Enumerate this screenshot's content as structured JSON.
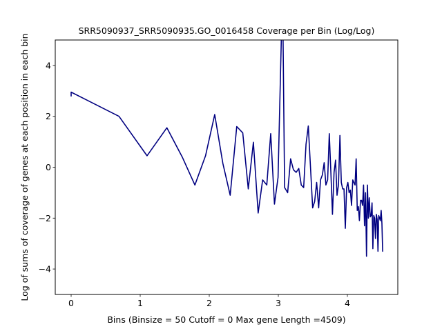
{
  "chart_data": {
    "type": "line",
    "title": "SRR5090937_SRR5090935.GO_0016458 Coverage per Bin (Log/Log)",
    "xlabel": "Bins  (Binsize = 50 Cutoff = 0 Max gene Length =4509)",
    "ylabel": "Log of sums of coverage of genes at each position in each bin",
    "xlim": [
      -0.23,
      4.73
    ],
    "ylim": [
      -5,
      5
    ],
    "xticks": [
      0,
      1,
      2,
      3,
      4
    ],
    "yticks": [
      -4,
      -2,
      0,
      2,
      4
    ],
    "grid": false,
    "line_color": "#000080",
    "series": [
      {
        "x": [
          0,
          0,
          0.693,
          1.099,
          1.386,
          1.609,
          1.792,
          1.946,
          2.079,
          2.197,
          2.303,
          2.398,
          2.485,
          2.565,
          2.639,
          2.708,
          2.773,
          2.833,
          2.89,
          2.944,
          2.996,
          3.045,
          3.068,
          3.091,
          3.135,
          3.178,
          3.219,
          3.258,
          3.296,
          3.332,
          3.367,
          3.401,
          3.434,
          3.466,
          3.497,
          3.526,
          3.555,
          3.584,
          3.611,
          3.638,
          3.664,
          3.689,
          3.714,
          3.738,
          3.761,
          3.784,
          3.807,
          3.829,
          3.85,
          3.871,
          3.892,
          3.912,
          3.932,
          3.951,
          3.97,
          3.989,
          4.007,
          4.025,
          4.043,
          4.06,
          4.078,
          4.094,
          4.111,
          4.127,
          4.143,
          4.159,
          4.174,
          4.19,
          4.205,
          4.22,
          4.234,
          4.248,
          4.263,
          4.277,
          4.29,
          4.304,
          4.317,
          4.331,
          4.344,
          4.357,
          4.369,
          4.382,
          4.394,
          4.407,
          4.419,
          4.431,
          4.443,
          4.454,
          4.466,
          4.477,
          4.489,
          4.5,
          4.511
        ],
        "y": [
          2.8,
          2.95,
          2.0,
          0.45,
          1.55,
          0.4,
          -0.7,
          0.45,
          2.07,
          0.15,
          -1.1,
          1.6,
          1.35,
          -0.85,
          0.98,
          -1.8,
          -0.5,
          -0.7,
          1.32,
          -1.45,
          -0.4,
          5.2,
          5.2,
          -0.8,
          -1.0,
          0.33,
          -0.1,
          -0.2,
          -0.05,
          -0.7,
          -0.8,
          0.9,
          1.62,
          0.0,
          -1.6,
          -1.35,
          -0.6,
          -1.6,
          -0.5,
          -0.3,
          0.18,
          -0.7,
          -0.5,
          1.32,
          -0.2,
          -1.85,
          -0.2,
          0.28,
          -1.1,
          -0.7,
          1.25,
          -0.6,
          -0.85,
          -0.85,
          -2.4,
          -0.8,
          -0.6,
          -1.0,
          -0.9,
          -1.5,
          -0.5,
          -0.6,
          -0.7,
          0.33,
          -1.7,
          -1.55,
          -2.1,
          -1.3,
          -1.3,
          -1.5,
          -0.7,
          -2.3,
          -1.0,
          -3.5,
          -0.7,
          -2.0,
          -1.2,
          -1.95,
          -1.9,
          -1.4,
          -3.2,
          -1.9,
          -2.0,
          -2.8,
          -1.85,
          -2.05,
          -3.3,
          -1.9,
          -2.0,
          -2.1,
          -1.7,
          -2.2,
          -3.3
        ]
      }
    ]
  }
}
